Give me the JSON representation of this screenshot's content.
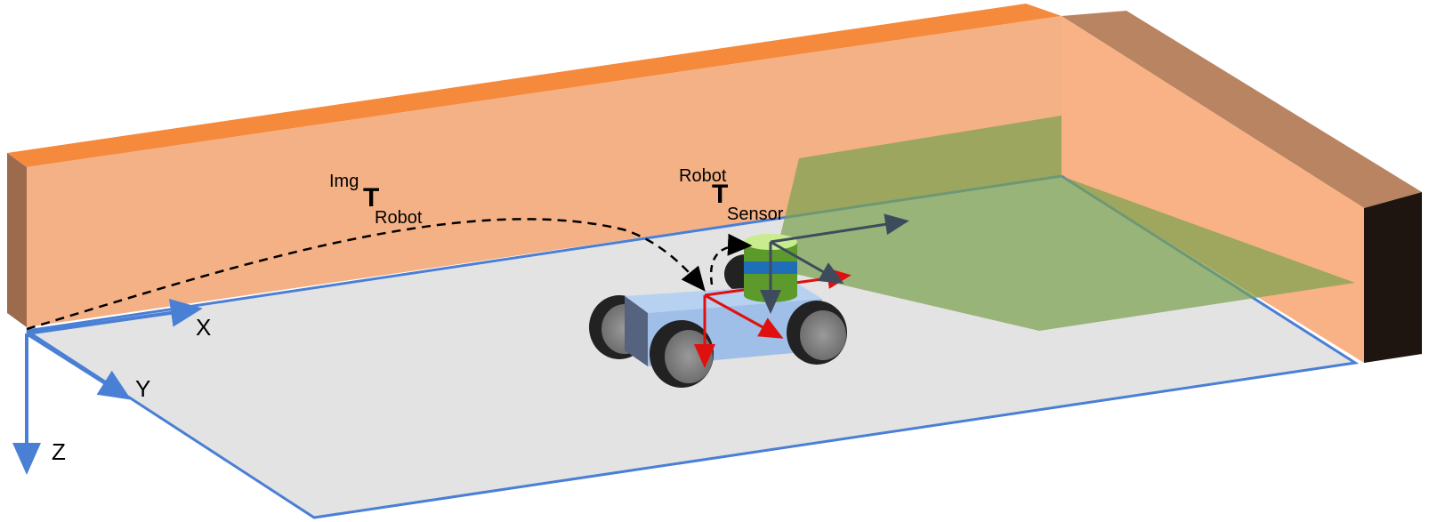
{
  "axes": {
    "x": "X",
    "y": "Y",
    "z": "Z"
  },
  "transforms": {
    "img_robot": {
      "superscript": "Img",
      "symbol": "T",
      "subscript": "Robot"
    },
    "robot_sensor": {
      "superscript": "Robot",
      "symbol": "T",
      "subscript": "Sensor"
    }
  },
  "colors": {
    "wall_face": "#f4b185",
    "wall_top": "#f58a3d",
    "wall_end_left": "#9c6b4e",
    "right_wall_face": "#f9b285",
    "right_wall_top": "#b98462",
    "right_wall_end": "#1f1510",
    "floor": "#e3e3e3",
    "floor_outline": "#4a7fd6",
    "sensor_fov": "#7ba24f",
    "robot_body": "#9fbfe8",
    "robot_side": "#56637f",
    "robot_frame": "#e01010",
    "sensor_frame": "#3d4b5c",
    "sensor_top": "#c9ec8f",
    "sensor_body": "#5d9a2c",
    "sensor_band": "#1f6fb8",
    "arrow": "#000000"
  }
}
